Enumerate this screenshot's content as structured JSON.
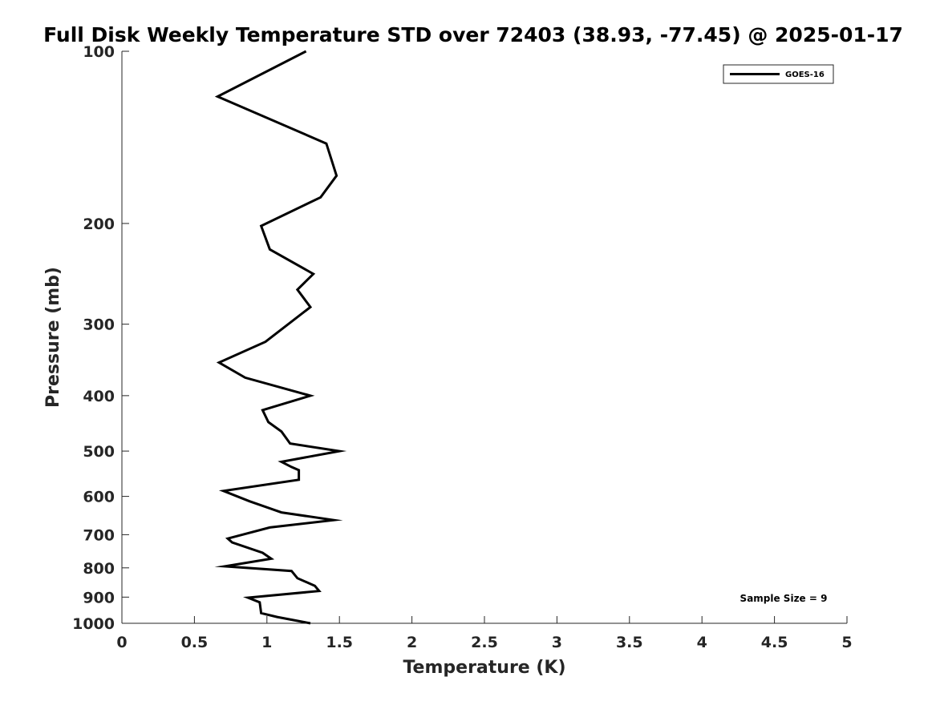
{
  "chart_data": {
    "type": "line",
    "title": "Full Disk Weekly Temperature STD over 72403 (38.93, -77.45) @ 2025-01-17",
    "xlabel": "Temperature (K)",
    "ylabel": "Pressure (mb)",
    "xlim": [
      0,
      5
    ],
    "ylim": [
      100,
      1000
    ],
    "y_scale": "log",
    "y_reversed": true,
    "grid": false,
    "legend_position": "top-right",
    "x_ticks": [
      "0",
      "0.5",
      "1",
      "1.5",
      "2",
      "2.5",
      "3",
      "3.5",
      "4",
      "4.5",
      "5"
    ],
    "x_tick_values": [
      0,
      0.5,
      1,
      1.5,
      2,
      2.5,
      3,
      3.5,
      4,
      4.5,
      5
    ],
    "y_ticks": [
      "100",
      "200",
      "300",
      "400",
      "500",
      "600",
      "700",
      "800",
      "900",
      "1000"
    ],
    "y_tick_values": [
      100,
      200,
      300,
      400,
      500,
      600,
      700,
      800,
      900,
      1000
    ],
    "series": [
      {
        "name": "GOES-16",
        "color": "#000000",
        "points": [
          [
            1.27,
            100
          ],
          [
            0.66,
            120
          ],
          [
            1.41,
            145
          ],
          [
            1.48,
            165
          ],
          [
            1.37,
            180
          ],
          [
            0.96,
            202
          ],
          [
            1.02,
            222
          ],
          [
            1.32,
            245
          ],
          [
            1.21,
            261
          ],
          [
            1.3,
            280
          ],
          [
            0.99,
            322
          ],
          [
            0.67,
            350
          ],
          [
            0.85,
            372
          ],
          [
            1.3,
            400
          ],
          [
            0.97,
            424
          ],
          [
            1.01,
            445
          ],
          [
            1.1,
            462
          ],
          [
            1.16,
            485
          ],
          [
            1.5,
            500
          ],
          [
            1.1,
            522
          ],
          [
            1.17,
            533
          ],
          [
            1.22,
            540
          ],
          [
            1.22,
            561
          ],
          [
            0.7,
            587
          ],
          [
            0.88,
            612
          ],
          [
            1.1,
            640
          ],
          [
            1.46,
            660
          ],
          [
            1.02,
            680
          ],
          [
            0.73,
            711
          ],
          [
            0.76,
            722
          ],
          [
            0.97,
            753
          ],
          [
            1.03,
            771
          ],
          [
            0.71,
            795
          ],
          [
            1.17,
            810
          ],
          [
            1.21,
            834
          ],
          [
            1.33,
            860
          ],
          [
            1.36,
            878
          ],
          [
            0.87,
            902
          ],
          [
            0.95,
            919
          ],
          [
            0.96,
            960
          ],
          [
            1.07,
            975
          ],
          [
            1.3,
            1000
          ]
        ]
      }
    ],
    "annotations": [
      {
        "text": "Sample Size = 9",
        "position": "bottom-right"
      }
    ]
  }
}
